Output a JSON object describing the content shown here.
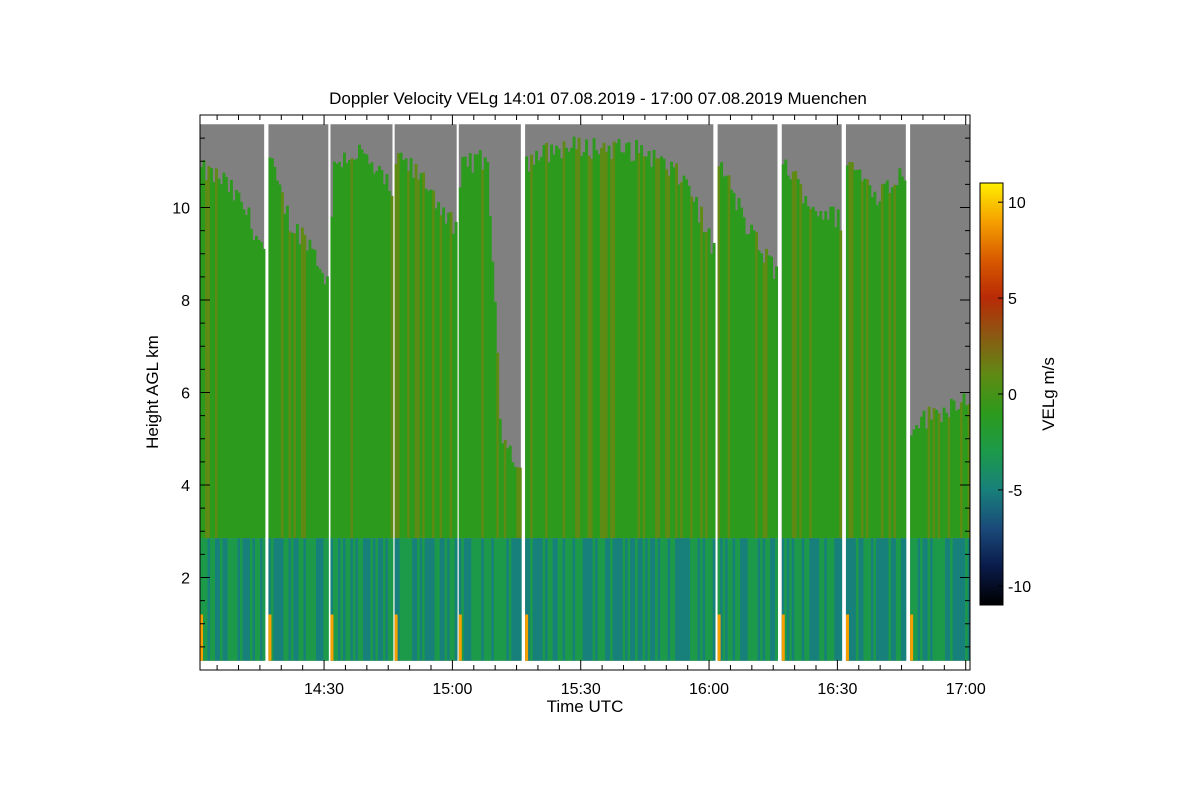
{
  "chart_data": {
    "type": "heatmap",
    "title": "Doppler Velocity VELg   14:01 07.08.2019 - 17:00 07.08.2019 Muenchen",
    "xlabel": "Time UTC",
    "ylabel": "Height AGL km",
    "xlim_minutes_utc": [
      841,
      1021
    ],
    "ylim_km": [
      0,
      12
    ],
    "x_ticks": [
      {
        "label": "14:30",
        "minute": 870
      },
      {
        "label": "15:00",
        "minute": 900
      },
      {
        "label": "15:30",
        "minute": 930
      },
      {
        "label": "16:00",
        "minute": 960
      },
      {
        "label": "16:30",
        "minute": 990
      },
      {
        "label": "17:00",
        "minute": 1020
      }
    ],
    "y_ticks": [
      {
        "label": "2",
        "value": 2
      },
      {
        "label": "4",
        "value": 4
      },
      {
        "label": "6",
        "value": 6
      },
      {
        "label": "8",
        "value": 8
      },
      {
        "label": "10",
        "value": 10
      }
    ],
    "colorbar": {
      "label": "VELg m/s",
      "range": [
        -11,
        11
      ],
      "ticks": [
        {
          "label": "10",
          "value": 10
        },
        {
          "label": "5",
          "value": 5
        },
        {
          "label": "0",
          "value": 0
        },
        {
          "label": "-5",
          "value": -5
        },
        {
          "label": "-10",
          "value": -10
        }
      ],
      "colormap": [
        "#000000",
        "#0a1b4a",
        "#1a4a7a",
        "#18807a",
        "#1c9a4a",
        "#2c9a1c",
        "#5f8a14",
        "#8a5a12",
        "#b82a06",
        "#d85a00",
        "#f5a000",
        "#ffee00"
      ]
    },
    "no_signal_color": "#808080",
    "measurement_segments": [
      {
        "start_min": 841,
        "end_min": 856
      },
      {
        "start_min": 857,
        "end_min": 871
      },
      {
        "start_min": 871.5,
        "end_min": 886
      },
      {
        "start_min": 886.5,
        "end_min": 901
      },
      {
        "start_min": 901.5,
        "end_min": 916
      },
      {
        "start_min": 917,
        "end_min": 961
      },
      {
        "start_min": 962,
        "end_min": 976
      },
      {
        "start_min": 977,
        "end_min": 991
      },
      {
        "start_min": 992,
        "end_min": 1006
      },
      {
        "start_min": 1007,
        "end_min": 1021
      }
    ],
    "layers": [
      {
        "name": "boundary layer",
        "bottom_km": 0.2,
        "top_km": 2.85,
        "typical_velocity_ms": -4
      },
      {
        "name": "cloud / precipitation layer",
        "bottom_km": 2.85,
        "top_km": 11.3,
        "typical_velocity_ms": -1
      }
    ],
    "cloud_top_km": [
      {
        "minute": 841,
        "top": 10.8
      },
      {
        "minute": 846,
        "top": 10.6
      },
      {
        "minute": 851,
        "top": 10.0
      },
      {
        "minute": 856,
        "top": 9.0
      },
      {
        "minute": 857,
        "top": 11.0
      },
      {
        "minute": 862,
        "top": 9.6
      },
      {
        "minute": 866,
        "top": 9.3
      },
      {
        "minute": 871,
        "top": 8.3
      },
      {
        "minute": 872,
        "top": 11.0
      },
      {
        "minute": 878,
        "top": 11.2
      },
      {
        "minute": 886,
        "top": 10.3
      },
      {
        "minute": 887,
        "top": 11.1
      },
      {
        "minute": 894,
        "top": 10.5
      },
      {
        "minute": 901,
        "top": 9.4
      },
      {
        "minute": 902,
        "top": 11.0
      },
      {
        "minute": 908,
        "top": 11.0
      },
      {
        "minute": 911,
        "top": 5.2
      },
      {
        "minute": 916,
        "top": 4.3
      },
      {
        "minute": 917,
        "top": 11.0
      },
      {
        "minute": 925,
        "top": 11.3
      },
      {
        "minute": 935,
        "top": 11.3
      },
      {
        "minute": 945,
        "top": 11.2
      },
      {
        "minute": 955,
        "top": 10.5
      },
      {
        "minute": 961,
        "top": 9.0
      },
      {
        "minute": 962,
        "top": 11.0
      },
      {
        "minute": 969,
        "top": 9.5
      },
      {
        "minute": 976,
        "top": 8.5
      },
      {
        "minute": 977,
        "top": 11.0
      },
      {
        "minute": 984,
        "top": 10.0
      },
      {
        "minute": 991,
        "top": 9.7
      },
      {
        "minute": 992,
        "top": 11.0
      },
      {
        "minute": 999,
        "top": 10.3
      },
      {
        "minute": 1006,
        "top": 10.8
      },
      {
        "minute": 1007,
        "top": 5.3
      },
      {
        "minute": 1014,
        "top": 5.6
      },
      {
        "minute": 1021,
        "top": 6.0
      }
    ]
  }
}
